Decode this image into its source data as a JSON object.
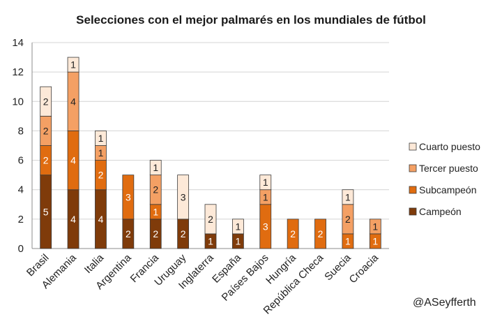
{
  "chart_data": {
    "type": "bar",
    "stacked": true,
    "title": "Selecciones con el mejor palmarés en los mundiales de fútbol",
    "xlabel": "",
    "ylabel": "",
    "ylim": [
      0,
      14
    ],
    "yticks": [
      0,
      2,
      4,
      6,
      8,
      10,
      12,
      14
    ],
    "grid": true,
    "legend_position": "right",
    "categories": [
      "Brasil",
      "Alemania",
      "Italia",
      "Argentina",
      "Francia",
      "Uruguay",
      "Inglaterra",
      "España",
      "Países Bajos",
      "Hungría",
      "República Checa",
      "Suecia",
      "Croacia"
    ],
    "series": [
      {
        "name": "Campeón",
        "color": "#7f3b0a",
        "label_color": "#ffffff",
        "values": [
          5,
          4,
          4,
          2,
          2,
          2,
          1,
          1,
          0,
          0,
          0,
          0,
          0
        ]
      },
      {
        "name": "Subcampeón",
        "color": "#e06c10",
        "label_color": "#ffffff",
        "values": [
          2,
          4,
          2,
          3,
          1,
          0,
          0,
          0,
          3,
          2,
          2,
          1,
          1
        ]
      },
      {
        "name": "Tercer puesto",
        "color": "#f4a064",
        "label_color": "#222222",
        "values": [
          2,
          4,
          1,
          0,
          2,
          0,
          0,
          0,
          1,
          0,
          0,
          2,
          1
        ]
      },
      {
        "name": "Cuarto puesto",
        "color": "#fde9d8",
        "label_color": "#222222",
        "values": [
          2,
          1,
          1,
          0,
          1,
          3,
          2,
          1,
          1,
          0,
          0,
          1,
          0
        ]
      }
    ],
    "grid_color": "#d4d4d4",
    "axis_color": "#8c8c8c"
  },
  "credit": "@ASeyfferth"
}
